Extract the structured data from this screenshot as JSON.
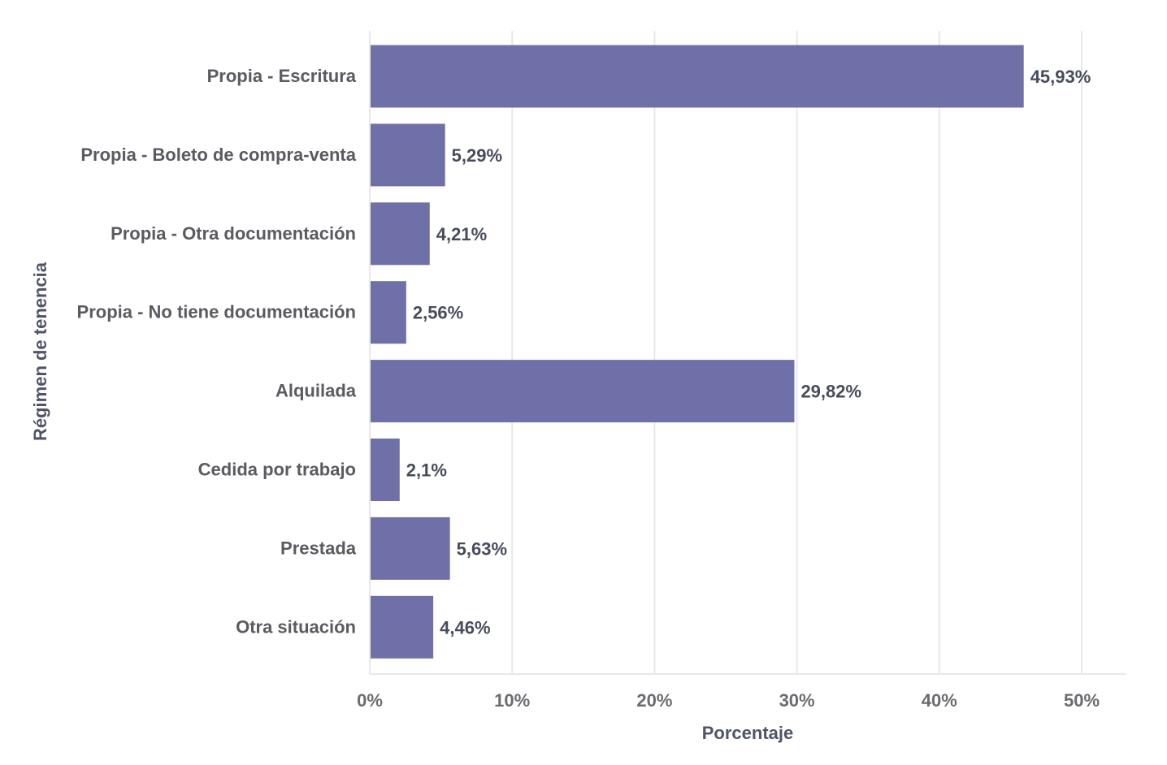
{
  "chart_data": {
    "type": "bar",
    "orientation": "horizontal",
    "title": "",
    "xlabel": "Porcentaje",
    "ylabel": "Régimen de tenencia",
    "categories": [
      "Propia - Escritura",
      "Propia - Boleto de compra-venta",
      "Propia - Otra documentación",
      "Propia - No tiene documentación",
      "Alquilada",
      "Cedida por trabajo",
      "Prestada",
      "Otra situación"
    ],
    "values": [
      45.93,
      5.29,
      4.21,
      2.56,
      29.82,
      2.1,
      5.63,
      4.46
    ],
    "value_labels": [
      "45,93%",
      "5,29%",
      "4,21%",
      "2,56%",
      "29,82%",
      "2,1%",
      "5,63%",
      "4,46%"
    ],
    "xlim": [
      0,
      53
    ],
    "xticks": [
      0,
      10,
      20,
      30,
      40,
      50
    ],
    "xtick_labels": [
      "0%",
      "10%",
      "20%",
      "30%",
      "40%",
      "50%"
    ],
    "grid": true,
    "bar_color": "#7070a8"
  }
}
